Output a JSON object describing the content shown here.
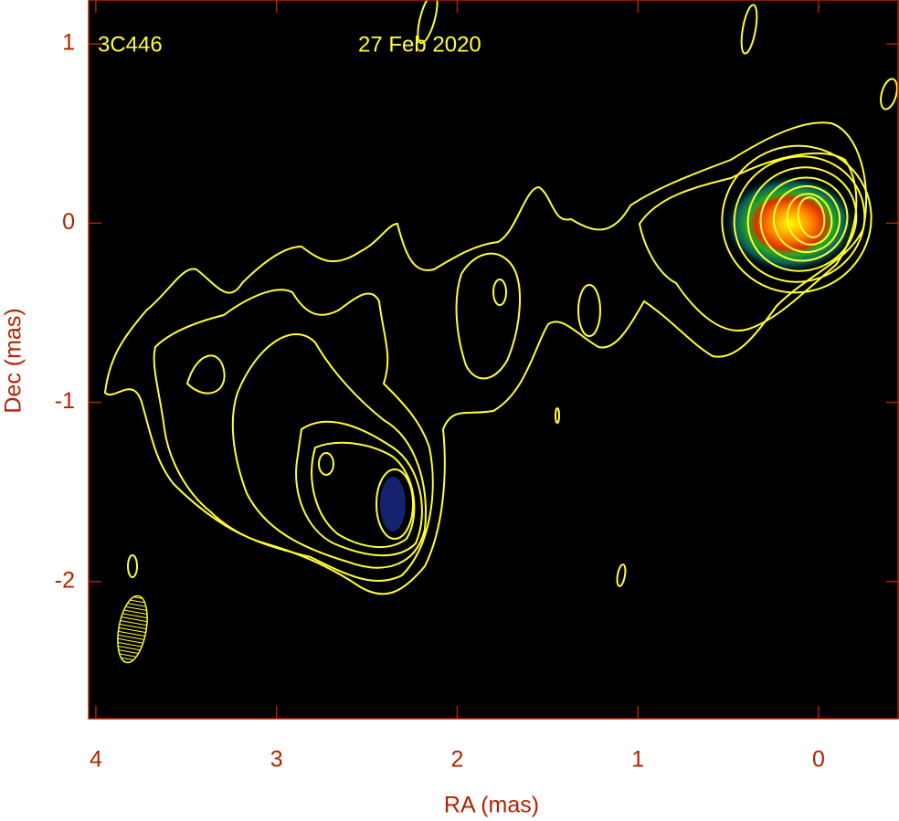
{
  "chart_data": {
    "type": "contour",
    "source": "3C446",
    "date": "27 Feb 2020",
    "x_label": "RA (mas)",
    "y_label": "Dec (mas)",
    "xlim": [
      4.04,
      -0.445
    ],
    "ylim": [
      -2.765,
      1.245
    ],
    "xticks": [
      4,
      3,
      2,
      1,
      0
    ],
    "yticks": [
      1,
      0,
      -1,
      -2
    ],
    "contour_color": "#ffff33",
    "axis_color": "#b22200"
  }
}
